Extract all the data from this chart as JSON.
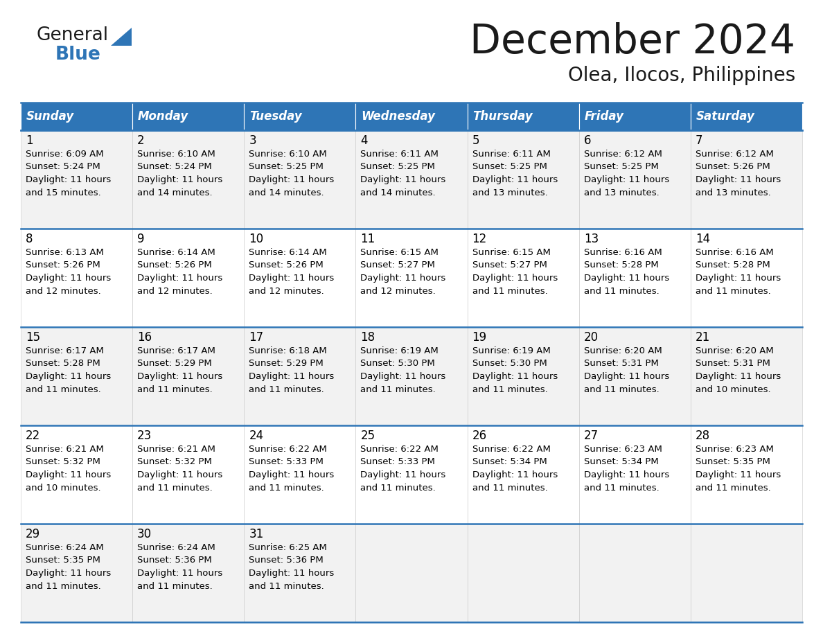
{
  "title": "December 2024",
  "subtitle": "Olea, Ilocos, Philippines",
  "days_of_week": [
    "Sunday",
    "Monday",
    "Tuesday",
    "Wednesday",
    "Thursday",
    "Friday",
    "Saturday"
  ],
  "header_bg": "#2E75B6",
  "header_text": "#FFFFFF",
  "row_bg_odd": "#F2F2F2",
  "row_bg_even": "#FFFFFF",
  "cell_text_color": "#000000",
  "border_color": "#2E75B6",
  "calendar_data": [
    [
      {
        "day": 1,
        "sunrise": "6:09 AM",
        "sunset": "5:24 PM",
        "daylight": "11 hours and 15 minutes."
      },
      {
        "day": 2,
        "sunrise": "6:10 AM",
        "sunset": "5:24 PM",
        "daylight": "11 hours and 14 minutes."
      },
      {
        "day": 3,
        "sunrise": "6:10 AM",
        "sunset": "5:25 PM",
        "daylight": "11 hours and 14 minutes."
      },
      {
        "day": 4,
        "sunrise": "6:11 AM",
        "sunset": "5:25 PM",
        "daylight": "11 hours and 14 minutes."
      },
      {
        "day": 5,
        "sunrise": "6:11 AM",
        "sunset": "5:25 PM",
        "daylight": "11 hours and 13 minutes."
      },
      {
        "day": 6,
        "sunrise": "6:12 AM",
        "sunset": "5:25 PM",
        "daylight": "11 hours and 13 minutes."
      },
      {
        "day": 7,
        "sunrise": "6:12 AM",
        "sunset": "5:26 PM",
        "daylight": "11 hours and 13 minutes."
      }
    ],
    [
      {
        "day": 8,
        "sunrise": "6:13 AM",
        "sunset": "5:26 PM",
        "daylight": "11 hours and 12 minutes."
      },
      {
        "day": 9,
        "sunrise": "6:14 AM",
        "sunset": "5:26 PM",
        "daylight": "11 hours and 12 minutes."
      },
      {
        "day": 10,
        "sunrise": "6:14 AM",
        "sunset": "5:26 PM",
        "daylight": "11 hours and 12 minutes."
      },
      {
        "day": 11,
        "sunrise": "6:15 AM",
        "sunset": "5:27 PM",
        "daylight": "11 hours and 12 minutes."
      },
      {
        "day": 12,
        "sunrise": "6:15 AM",
        "sunset": "5:27 PM",
        "daylight": "11 hours and 11 minutes."
      },
      {
        "day": 13,
        "sunrise": "6:16 AM",
        "sunset": "5:28 PM",
        "daylight": "11 hours and 11 minutes."
      },
      {
        "day": 14,
        "sunrise": "6:16 AM",
        "sunset": "5:28 PM",
        "daylight": "11 hours and 11 minutes."
      }
    ],
    [
      {
        "day": 15,
        "sunrise": "6:17 AM",
        "sunset": "5:28 PM",
        "daylight": "11 hours and 11 minutes."
      },
      {
        "day": 16,
        "sunrise": "6:17 AM",
        "sunset": "5:29 PM",
        "daylight": "11 hours and 11 minutes."
      },
      {
        "day": 17,
        "sunrise": "6:18 AM",
        "sunset": "5:29 PM",
        "daylight": "11 hours and 11 minutes."
      },
      {
        "day": 18,
        "sunrise": "6:19 AM",
        "sunset": "5:30 PM",
        "daylight": "11 hours and 11 minutes."
      },
      {
        "day": 19,
        "sunrise": "6:19 AM",
        "sunset": "5:30 PM",
        "daylight": "11 hours and 11 minutes."
      },
      {
        "day": 20,
        "sunrise": "6:20 AM",
        "sunset": "5:31 PM",
        "daylight": "11 hours and 11 minutes."
      },
      {
        "day": 21,
        "sunrise": "6:20 AM",
        "sunset": "5:31 PM",
        "daylight": "11 hours and 10 minutes."
      }
    ],
    [
      {
        "day": 22,
        "sunrise": "6:21 AM",
        "sunset": "5:32 PM",
        "daylight": "11 hours and 10 minutes."
      },
      {
        "day": 23,
        "sunrise": "6:21 AM",
        "sunset": "5:32 PM",
        "daylight": "11 hours and 11 minutes."
      },
      {
        "day": 24,
        "sunrise": "6:22 AM",
        "sunset": "5:33 PM",
        "daylight": "11 hours and 11 minutes."
      },
      {
        "day": 25,
        "sunrise": "6:22 AM",
        "sunset": "5:33 PM",
        "daylight": "11 hours and 11 minutes."
      },
      {
        "day": 26,
        "sunrise": "6:22 AM",
        "sunset": "5:34 PM",
        "daylight": "11 hours and 11 minutes."
      },
      {
        "day": 27,
        "sunrise": "6:23 AM",
        "sunset": "5:34 PM",
        "daylight": "11 hours and 11 minutes."
      },
      {
        "day": 28,
        "sunrise": "6:23 AM",
        "sunset": "5:35 PM",
        "daylight": "11 hours and 11 minutes."
      }
    ],
    [
      {
        "day": 29,
        "sunrise": "6:24 AM",
        "sunset": "5:35 PM",
        "daylight": "11 hours and 11 minutes."
      },
      {
        "day": 30,
        "sunrise": "6:24 AM",
        "sunset": "5:36 PM",
        "daylight": "11 hours and 11 minutes."
      },
      {
        "day": 31,
        "sunrise": "6:25 AM",
        "sunset": "5:36 PM",
        "daylight": "11 hours and 11 minutes."
      },
      null,
      null,
      null,
      null
    ]
  ],
  "logo_text_general": "General",
  "logo_text_blue": "Blue",
  "logo_color_general": "#1a1a1a",
  "logo_color_blue": "#2E75B6",
  "logo_triangle_color": "#2E75B6"
}
